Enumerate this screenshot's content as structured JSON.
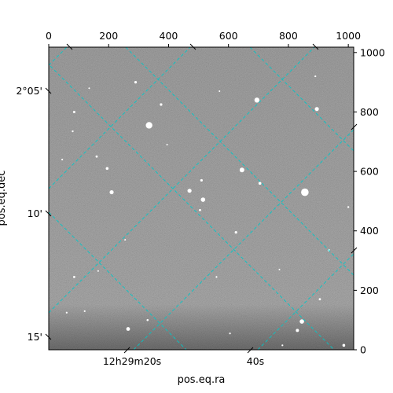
{
  "chart_data": {
    "type": "image",
    "title": "",
    "xlabel": "pos.eq.ra",
    "ylabel": "pos.eq.dec",
    "pixel_axes": {
      "x_ticks": [
        0,
        200,
        400,
        600,
        800,
        1000
      ],
      "y_ticks": [
        0,
        200,
        400,
        600,
        800,
        1000
      ],
      "xlim": [
        0,
        1018
      ],
      "ylim": [
        0,
        1018
      ]
    },
    "world_axes": {
      "ra_tick_labels": [
        "12h29m20s",
        "40s"
      ],
      "dec_tick_labels": [
        "2°05'",
        "10'",
        "15'"
      ]
    },
    "grid": true,
    "grid_color": "#00c8c8",
    "image_colormap": "gray",
    "background_color": "#787878",
    "stars": [
      {
        "x": 290,
        "y": 900,
        "r": 1.6
      },
      {
        "x": 375,
        "y": 825,
        "r": 1.6
      },
      {
        "x": 335,
        "y": 755,
        "r": 4.2
      },
      {
        "x": 85,
        "y": 800,
        "r": 1.5
      },
      {
        "x": 695,
        "y": 840,
        "r": 3.2
      },
      {
        "x": 895,
        "y": 810,
        "r": 2.6
      },
      {
        "x": 80,
        "y": 735,
        "r": 1.2
      },
      {
        "x": 160,
        "y": 650,
        "r": 1.4
      },
      {
        "x": 195,
        "y": 610,
        "r": 1.8
      },
      {
        "x": 210,
        "y": 530,
        "r": 2.6
      },
      {
        "x": 645,
        "y": 605,
        "r": 3.0
      },
      {
        "x": 705,
        "y": 560,
        "r": 1.8
      },
      {
        "x": 855,
        "y": 530,
        "r": 4.8
      },
      {
        "x": 470,
        "y": 535,
        "r": 2.6
      },
      {
        "x": 510,
        "y": 570,
        "r": 1.6
      },
      {
        "x": 515,
        "y": 505,
        "r": 2.8
      },
      {
        "x": 505,
        "y": 470,
        "r": 1.4
      },
      {
        "x": 625,
        "y": 395,
        "r": 1.6
      },
      {
        "x": 1000,
        "y": 480,
        "r": 1.2
      },
      {
        "x": 935,
        "y": 335,
        "r": 1.4
      },
      {
        "x": 85,
        "y": 245,
        "r": 1.4
      },
      {
        "x": 165,
        "y": 265,
        "r": 1.0
      },
      {
        "x": 255,
        "y": 370,
        "r": 1.0
      },
      {
        "x": 560,
        "y": 245,
        "r": 1.1
      },
      {
        "x": 770,
        "y": 270,
        "r": 1.0
      },
      {
        "x": 905,
        "y": 170,
        "r": 1.4
      },
      {
        "x": 845,
        "y": 95,
        "r": 2.8
      },
      {
        "x": 830,
        "y": 65,
        "r": 2.0
      },
      {
        "x": 265,
        "y": 70,
        "r": 2.4
      },
      {
        "x": 330,
        "y": 100,
        "r": 1.3
      },
      {
        "x": 60,
        "y": 125,
        "r": 1.1
      },
      {
        "x": 120,
        "y": 130,
        "r": 1.1
      },
      {
        "x": 985,
        "y": 15,
        "r": 1.8
      },
      {
        "x": 780,
        "y": 15,
        "r": 1.1
      },
      {
        "x": 605,
        "y": 55,
        "r": 1.1
      },
      {
        "x": 890,
        "y": 920,
        "r": 1.1
      },
      {
        "x": 570,
        "y": 870,
        "r": 1.0
      },
      {
        "x": 135,
        "y": 880,
        "r": 1.0
      },
      {
        "x": 45,
        "y": 640,
        "r": 1.1
      },
      {
        "x": 395,
        "y": 690,
        "r": 1.0
      }
    ]
  }
}
